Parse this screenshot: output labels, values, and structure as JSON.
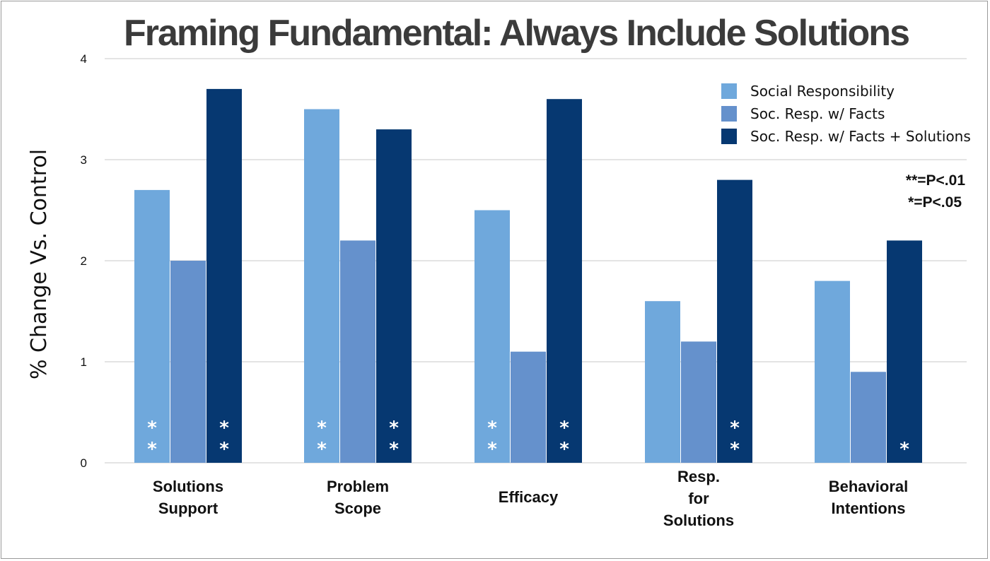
{
  "chart_data": {
    "type": "bar",
    "title": "Framing Fundamental: Always Include Solutions",
    "xlabel": "",
    "ylabel": "% Change Vs. Control",
    "ylim": [
      0,
      4
    ],
    "yticks": [
      "0",
      "1",
      "2",
      "3",
      "4"
    ],
    "grid": true,
    "legend_position": "top-right",
    "categories": [
      [
        "Solutions",
        "Support"
      ],
      [
        "Problem",
        "Scope"
      ],
      [
        "Efficacy"
      ],
      [
        "Resp.",
        "for",
        "Solutions"
      ],
      [
        "Behavioral",
        "Intentions"
      ]
    ],
    "series": [
      {
        "name": "Social Responsibility",
        "color": "#6fa8dc",
        "values": [
          2.7,
          3.5,
          2.5,
          1.6,
          1.8
        ],
        "significance": [
          "**",
          "**",
          "**",
          "",
          ""
        ]
      },
      {
        "name": "Soc. Resp. w/ Facts",
        "color": "#6591cc",
        "values": [
          2.0,
          2.2,
          1.1,
          1.2,
          0.9
        ],
        "significance": [
          "",
          "",
          "",
          "",
          ""
        ]
      },
      {
        "name": "Soc. Resp. w/ Facts + Solutions",
        "color": "#063871",
        "values": [
          3.7,
          3.3,
          3.6,
          2.8,
          2.2
        ],
        "significance": [
          "**",
          "**",
          "**",
          "**",
          "*"
        ]
      }
    ],
    "significance_key": [
      "**=P<.01",
      "*=P<.05"
    ]
  }
}
